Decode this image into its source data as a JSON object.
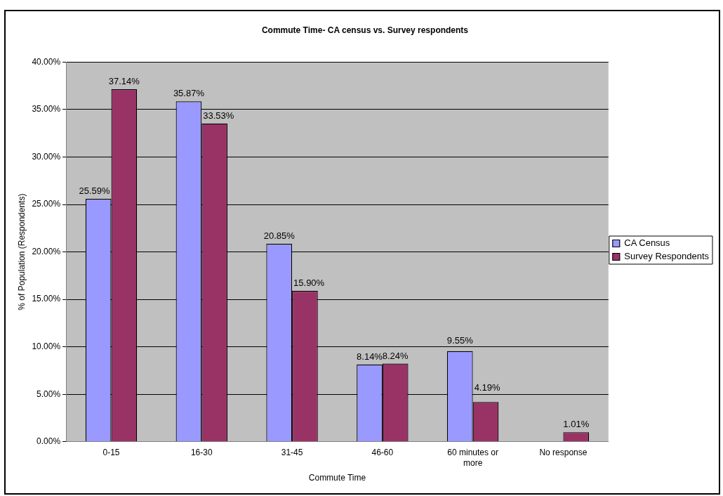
{
  "chart_data": {
    "type": "bar",
    "title": "Commute Time- CA census vs. Survey respondents",
    "xlabel": "Commute Time",
    "ylabel": "% of Population (Respondents)",
    "categories": [
      "0-15",
      "16-30",
      "31-45",
      "46-60",
      "60 minutes or more",
      "No response"
    ],
    "series": [
      {
        "name": "CA Census",
        "color": "#9999ff",
        "values": [
          25.59,
          35.87,
          20.85,
          8.14,
          9.55,
          null
        ],
        "value_labels": [
          "25.59%",
          "35.87%",
          "20.85%",
          "8.14%",
          "9.55%",
          null
        ]
      },
      {
        "name": "Survey Respondents",
        "color": "#993366",
        "values": [
          37.14,
          33.53,
          15.9,
          8.24,
          4.19,
          1.01
        ],
        "value_labels": [
          "37.14%",
          "33.53%",
          "15.90%",
          "8.24%",
          "4.19%",
          "1.01%"
        ]
      }
    ],
    "ylim": [
      0,
      40
    ],
    "yticks": [
      {
        "value": 0,
        "label": "0.00%"
      },
      {
        "value": 5,
        "label": "5.00%"
      },
      {
        "value": 10,
        "label": "10.00%"
      },
      {
        "value": 15,
        "label": "15.00%"
      },
      {
        "value": 20,
        "label": "20.00%"
      },
      {
        "value": 25,
        "label": "25.00%"
      },
      {
        "value": 30,
        "label": "30.00%"
      },
      {
        "value": 35,
        "label": "35.00%"
      },
      {
        "value": 40,
        "label": "40.00%"
      }
    ],
    "grid": "y",
    "legend": "right"
  }
}
